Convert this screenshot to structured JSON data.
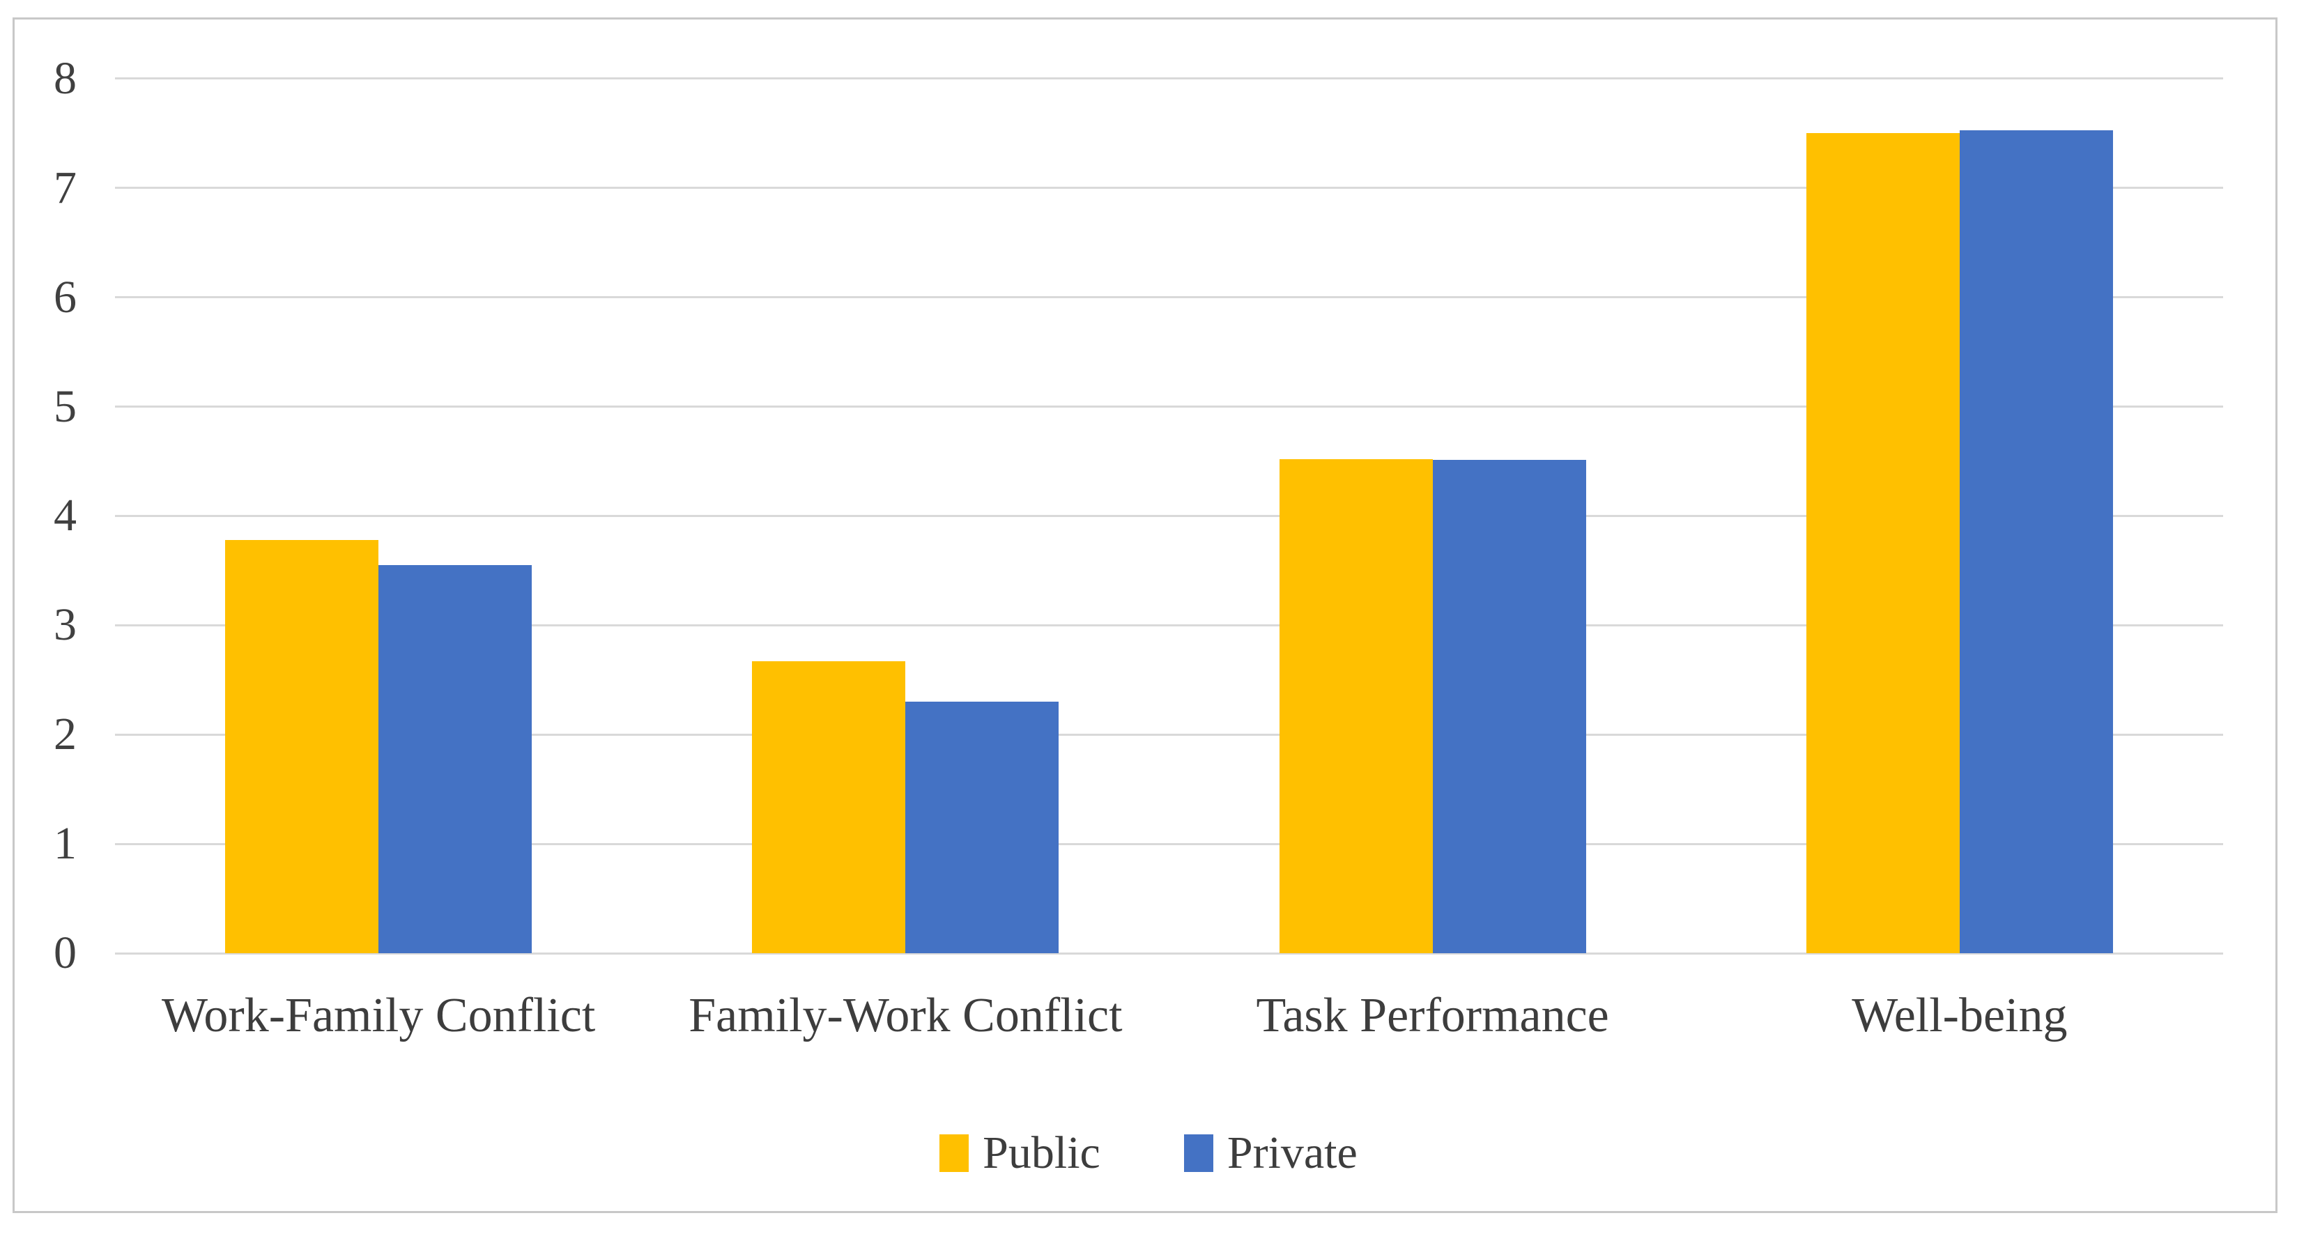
{
  "figure": {
    "background": "#ffffff",
    "border_color": "#c8c8c8"
  },
  "chart_data": {
    "type": "bar",
    "title": "",
    "categories": [
      "Work-Family Conflict",
      "Family-Work Conflict",
      "Task Performance",
      "Well-being"
    ],
    "series": [
      {
        "name": "Public",
        "color": "#FFC000",
        "values": [
          3.78,
          2.67,
          4.52,
          7.5
        ]
      },
      {
        "name": "Private",
        "color": "#4472C4",
        "values": [
          3.55,
          2.3,
          4.51,
          7.53
        ]
      }
    ],
    "ylim": [
      0,
      8
    ],
    "yticks": [
      0,
      1,
      2,
      3,
      4,
      5,
      6,
      7,
      8
    ],
    "grid": true,
    "gridline_color": "#d9d9d9",
    "tick_label_color": "#404040",
    "category_label_color": "#3d3d3d",
    "legend_position": "bottom",
    "legend_labels": [
      "Public",
      "Private"
    ]
  }
}
